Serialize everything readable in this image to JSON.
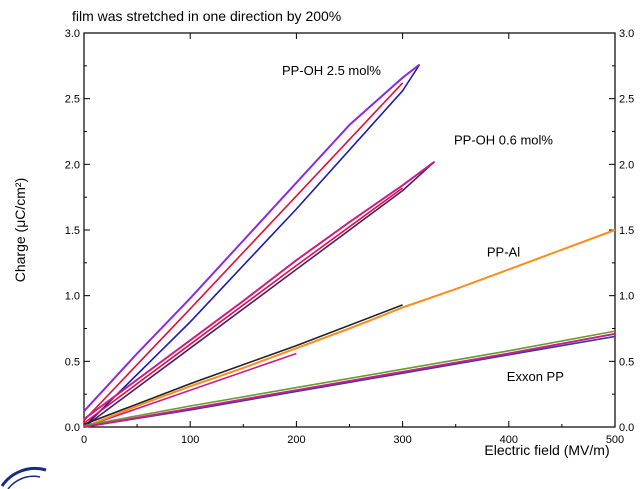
{
  "chart_data": {
    "type": "line",
    "title": "film was stretched in one direction by 200%",
    "xlabel": "Electric field (MV/m)",
    "ylabel": "Charge (μC/cm²)",
    "xlim": [
      0,
      500
    ],
    "ylim": [
      0,
      3.0
    ],
    "x_ticks": [
      "0",
      "100",
      "200",
      "300",
      "400",
      "500"
    ],
    "y_ticks": [
      "0.0",
      "0.5",
      "1.0",
      "1.5",
      "2.0",
      "2.5",
      "3.0"
    ],
    "grid": false,
    "legend": "none",
    "series": [
      {
        "name": "PP-OH 2.5 mol%",
        "color": "#8a2be2",
        "x": [
          0,
          50,
          100,
          150,
          200,
          250,
          300,
          316
        ],
        "y": [
          0.12,
          0.56,
          0.98,
          1.42,
          1.86,
          2.3,
          2.66,
          2.76
        ],
        "branches": [
          {
            "color": "#1a1ab0",
            "x": [
              0,
              100,
              200,
              300,
              316
            ],
            "y": [
              0.0,
              0.8,
              1.66,
              2.56,
              2.76
            ]
          },
          {
            "color": "#e0103a",
            "x": [
              0,
              100,
              200,
              300
            ],
            "y": [
              0.05,
              0.9,
              1.76,
              2.62
            ]
          }
        ]
      },
      {
        "name": "PP-OH 0.6 mol%",
        "color": "#c81e8c",
        "x": [
          0,
          50,
          100,
          150,
          200,
          250,
          300,
          330
        ],
        "y": [
          0.06,
          0.36,
          0.66,
          0.96,
          1.27,
          1.56,
          1.84,
          2.02
        ],
        "branches": [
          {
            "color": "#4a1a7a",
            "x": [
              0,
              100,
              200,
              300,
              330
            ],
            "y": [
              0.0,
              0.6,
              1.2,
              1.8,
              2.02
            ]
          },
          {
            "color": "#e0103a",
            "x": [
              0,
              100,
              200,
              300
            ],
            "y": [
              0.03,
              0.63,
              1.23,
              1.82
            ]
          }
        ]
      },
      {
        "name": "PP-Al",
        "color": "#ff8c1a",
        "x": [
          0,
          50,
          100,
          150,
          200,
          250,
          300,
          350,
          400,
          450,
          500
        ],
        "y": [
          0.0,
          0.16,
          0.31,
          0.45,
          0.6,
          0.75,
          0.91,
          1.05,
          1.2,
          1.35,
          1.5
        ],
        "branches": [
          {
            "color": "#202020",
            "x": [
              0,
              100,
              200,
              300
            ],
            "y": [
              0.02,
              0.33,
              0.62,
              0.93
            ]
          },
          {
            "color": "#c81e8c",
            "x": [
              0,
              100,
              200
            ],
            "y": [
              0.0,
              0.28,
              0.56
            ]
          }
        ]
      },
      {
        "name": "Exxon PP",
        "color": "#c81e8c",
        "x": [
          0,
          100,
          200,
          300,
          400,
          500
        ],
        "y": [
          0.0,
          0.14,
          0.28,
          0.42,
          0.56,
          0.71
        ],
        "branches": [
          {
            "color": "#6a9a2a",
            "x": [
              0,
              100,
              200,
              300,
              400,
              500
            ],
            "y": [
              0.01,
              0.16,
              0.3,
              0.44,
              0.58,
              0.73
            ]
          },
          {
            "color": "#3a3aa0",
            "x": [
              0,
              100,
              200,
              300,
              400,
              500
            ],
            "y": [
              0.0,
              0.13,
              0.27,
              0.41,
              0.55,
              0.69
            ]
          }
        ]
      }
    ],
    "annotations": [
      {
        "text": "PP-OH 2.5 mol%",
        "x": 233,
        "y": 2.68
      },
      {
        "text": "PP-OH 0.6 mol%",
        "x": 395,
        "y": 2.15
      },
      {
        "text": "PP-Al",
        "x": 395,
        "y": 1.3
      },
      {
        "text": "Exxon PP",
        "x": 425,
        "y": 0.35
      }
    ]
  }
}
